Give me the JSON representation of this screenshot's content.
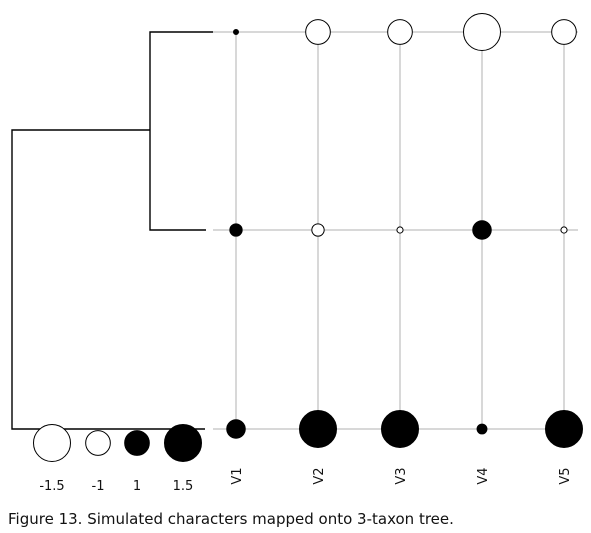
{
  "caption": "Figure 13. Simulated characters mapped onto 3-taxon tree.",
  "chart_data": {
    "type": "phylogenetic-bubble-plot",
    "variables": [
      "V1",
      "V2",
      "V3",
      "V4",
      "V5"
    ],
    "taxa_rows": 3,
    "values": [
      [
        0.0,
        -1.0,
        -1.0,
        -1.5,
        -1.0
      ],
      [
        0.5,
        -0.5,
        -0.25,
        0.75,
        -0.25
      ],
      [
        0.75,
        1.5,
        1.5,
        0.4,
        1.5
      ]
    ],
    "legend": {
      "values": [
        -1.5,
        -1,
        1,
        1.5
      ],
      "labels": [
        "-1.5",
        "-1",
        "1",
        "1.5"
      ]
    },
    "colors": {
      "negative_fill": "#ffffff",
      "positive_fill": "#000000",
      "stroke": "#000000",
      "grid": "#b0b0b0",
      "tree": "#000000"
    }
  }
}
